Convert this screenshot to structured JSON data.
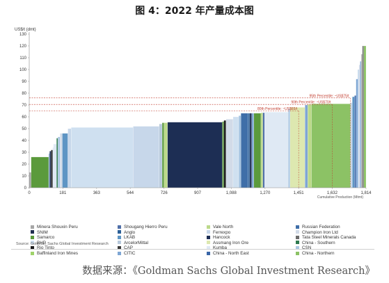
{
  "title": "图 4：2022 年产量成本图",
  "source_note": "Source: Goldman Sachs Global Investment Research",
  "footer_source": "数据来源：《Goldman Sachs Global Investment Research》",
  "chart_data": {
    "type": "bar",
    "subtype": "variable-width cost curve",
    "ylabel": "US$/t (dmt)",
    "xlabel": "Cumulative Production (Mtmt)",
    "ylim": [
      0,
      130
    ],
    "xlim": [
      0,
      1814
    ],
    "y_ticks": [
      0,
      10,
      20,
      30,
      40,
      50,
      60,
      70,
      80,
      90,
      100,
      110,
      120,
      130
    ],
    "x_ticks": [
      0,
      181,
      363,
      544,
      726,
      907,
      1088,
      1270,
      1451,
      1632,
      1814
    ],
    "grid": false,
    "legend_position": "bottom",
    "percentile_lines": [
      {
        "label": "95th Percentile: ~US$75/t",
        "value": 76,
        "x_start": 0,
        "x_end": 1730
      },
      {
        "label": "90th Percentile: ~US$70/t",
        "value": 70.5,
        "x_start": 0,
        "x_end": 1632
      },
      {
        "label": "80th Percentile: ~US$65/t",
        "value": 65,
        "x_start": 0,
        "x_end": 1451
      }
    ],
    "series": [
      {
        "name": "Minera Shouxin Peru",
        "color": "#a6a6a6"
      },
      {
        "name": "SNIM",
        "color": "#1f2d4f"
      },
      {
        "name": "Samarco",
        "color": "#5b9a3c"
      },
      {
        "name": "BHP",
        "color": "#cfe0f0"
      },
      {
        "name": "Rio Tinto",
        "color": "#1b1b1b"
      },
      {
        "name": "Baffinland Iron Mines",
        "color": "#9fd26a"
      },
      {
        "name": "Shougang Hierro Peru",
        "color": "#4f6fa8"
      },
      {
        "name": "Anglo",
        "color": "#2b5f97"
      },
      {
        "name": "LKAB",
        "color": "#5e95c4"
      },
      {
        "name": "ArcelorMittal",
        "color": "#b7c9dc"
      },
      {
        "name": "CAP",
        "color": "#3a3a3a"
      },
      {
        "name": "CITIC",
        "color": "#7ea6d4"
      },
      {
        "name": "Vale North",
        "color": "#bcd98a"
      },
      {
        "name": "Ferrexpo",
        "color": "#c7d7ea"
      },
      {
        "name": "Hancock",
        "color": "#1d2e54"
      },
      {
        "name": "Assmang Iron Ore",
        "color": "#dde8b0"
      },
      {
        "name": "Kumba",
        "color": "#dfe9f4"
      },
      {
        "name": "China - North East",
        "color": "#3a66a8"
      },
      {
        "name": "Russian Federation",
        "color": "#3f6ea8"
      },
      {
        "name": "Champion Iron Ltd",
        "color": "#d2dbe8"
      },
      {
        "name": "Tata Steel Minerals Canada",
        "color": "#6d6d6d"
      },
      {
        "name": "China - Southern",
        "color": "#2e7a4f"
      },
      {
        "name": "CSN",
        "color": "#a9c6e2"
      },
      {
        "name": "China - Northern",
        "color": "#8cc265"
      }
    ],
    "bars": [
      {
        "x0": 0,
        "x1": 10,
        "value": 13,
        "series": "Minera Shouxin Peru"
      },
      {
        "x0": 10,
        "x1": 105,
        "value": 26,
        "series": "Samarco"
      },
      {
        "x0": 105,
        "x1": 110,
        "value": 29,
        "series": "CITIC"
      },
      {
        "x0": 110,
        "x1": 118,
        "value": 31,
        "series": "Hancock"
      },
      {
        "x0": 118,
        "x1": 126,
        "value": 32,
        "series": "Rio Tinto"
      },
      {
        "x0": 126,
        "x1": 130,
        "value": 34,
        "series": "BHP"
      },
      {
        "x0": 130,
        "x1": 147,
        "value": 37,
        "series": "Kumba"
      },
      {
        "x0": 147,
        "x1": 154,
        "value": 42,
        "series": "China - Southern"
      },
      {
        "x0": 154,
        "x1": 166,
        "value": 43,
        "series": "CSN"
      },
      {
        "x0": 166,
        "x1": 178,
        "value": 46,
        "series": "Champion Iron Ltd"
      },
      {
        "x0": 178,
        "x1": 208,
        "value": 46,
        "series": "LKAB"
      },
      {
        "x0": 208,
        "x1": 226,
        "value": 50,
        "series": "Ferrexpo"
      },
      {
        "x0": 226,
        "x1": 560,
        "value": 51,
        "series": "BHP"
      },
      {
        "x0": 560,
        "x1": 700,
        "value": 52,
        "series": "Ferrexpo"
      },
      {
        "x0": 700,
        "x1": 716,
        "value": 54,
        "series": "ArcelorMittal"
      },
      {
        "x0": 716,
        "x1": 726,
        "value": 55,
        "series": "Samarco"
      },
      {
        "x0": 726,
        "x1": 745,
        "value": 55,
        "series": "Vale North"
      },
      {
        "x0": 745,
        "x1": 1040,
        "value": 55.5,
        "series": "Hancock"
      },
      {
        "x0": 1040,
        "x1": 1048,
        "value": 56,
        "series": "Samarco"
      },
      {
        "x0": 1048,
        "x1": 1060,
        "value": 57,
        "series": "Rio Tinto"
      },
      {
        "x0": 1060,
        "x1": 1098,
        "value": 58,
        "series": "Champion Iron Ltd"
      },
      {
        "x0": 1098,
        "x1": 1128,
        "value": 60,
        "series": "BHP"
      },
      {
        "x0": 1128,
        "x1": 1140,
        "value": 61,
        "series": "CSN"
      },
      {
        "x0": 1140,
        "x1": 1180,
        "value": 63,
        "series": "Russian Federation"
      },
      {
        "x0": 1180,
        "x1": 1188,
        "value": 63,
        "series": "Anglo"
      },
      {
        "x0": 1188,
        "x1": 1198,
        "value": 63,
        "series": "Hancock"
      },
      {
        "x0": 1198,
        "x1": 1210,
        "value": 63,
        "series": "CITIC"
      },
      {
        "x0": 1210,
        "x1": 1248,
        "value": 63,
        "series": "Samarco"
      },
      {
        "x0": 1248,
        "x1": 1258,
        "value": 63.5,
        "series": "Vale North"
      },
      {
        "x0": 1258,
        "x1": 1268,
        "value": 63.5,
        "series": "Shougang Hierro Peru"
      },
      {
        "x0": 1268,
        "x1": 1395,
        "value": 64,
        "series": "Kumba"
      },
      {
        "x0": 1395,
        "x1": 1405,
        "value": 67,
        "series": "CSN"
      },
      {
        "x0": 1405,
        "x1": 1485,
        "value": 68,
        "series": "Assmang Iron Ore"
      },
      {
        "x0": 1485,
        "x1": 1500,
        "value": 70,
        "series": "CITIC"
      },
      {
        "x0": 1500,
        "x1": 1520,
        "value": 70.5,
        "series": "Vale North"
      },
      {
        "x0": 1520,
        "x1": 1730,
        "value": 71,
        "series": "China - Northern"
      },
      {
        "x0": 1730,
        "x1": 1740,
        "value": 72,
        "series": "Ferrexpo"
      },
      {
        "x0": 1740,
        "x1": 1752,
        "value": 77,
        "series": "LKAB"
      },
      {
        "x0": 1752,
        "x1": 1760,
        "value": 78,
        "series": "China - North East"
      },
      {
        "x0": 1760,
        "x1": 1770,
        "value": 92,
        "series": "CITIC"
      },
      {
        "x0": 1770,
        "x1": 1776,
        "value": 100,
        "series": "CSN"
      },
      {
        "x0": 1776,
        "x1": 1782,
        "value": 104,
        "series": "Champion Iron Ltd"
      },
      {
        "x0": 1782,
        "x1": 1788,
        "value": 107,
        "series": "CITIC"
      },
      {
        "x0": 1788,
        "x1": 1794,
        "value": 113,
        "series": "Minera Shouxin Peru"
      },
      {
        "x0": 1794,
        "x1": 1802,
        "value": 120,
        "series": "Tata Steel Minerals Canada"
      },
      {
        "x0": 1802,
        "x1": 1814,
        "value": 120,
        "series": "China - Northern"
      }
    ]
  }
}
